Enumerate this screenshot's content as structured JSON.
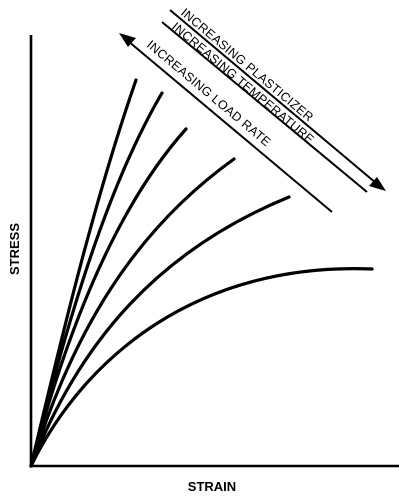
{
  "diagram": {
    "x_axis_label": "STRAIN",
    "y_axis_label": "STRESS",
    "trend_labels": {
      "plasticizer": "INCREASING PLASTICIZER",
      "temperature": "INCREASING TEMPERATURE",
      "load_rate": "INCREASING LOAD RATE"
    },
    "curve_count": 6,
    "line_color": "#000000",
    "background_color": "#ffffff"
  }
}
